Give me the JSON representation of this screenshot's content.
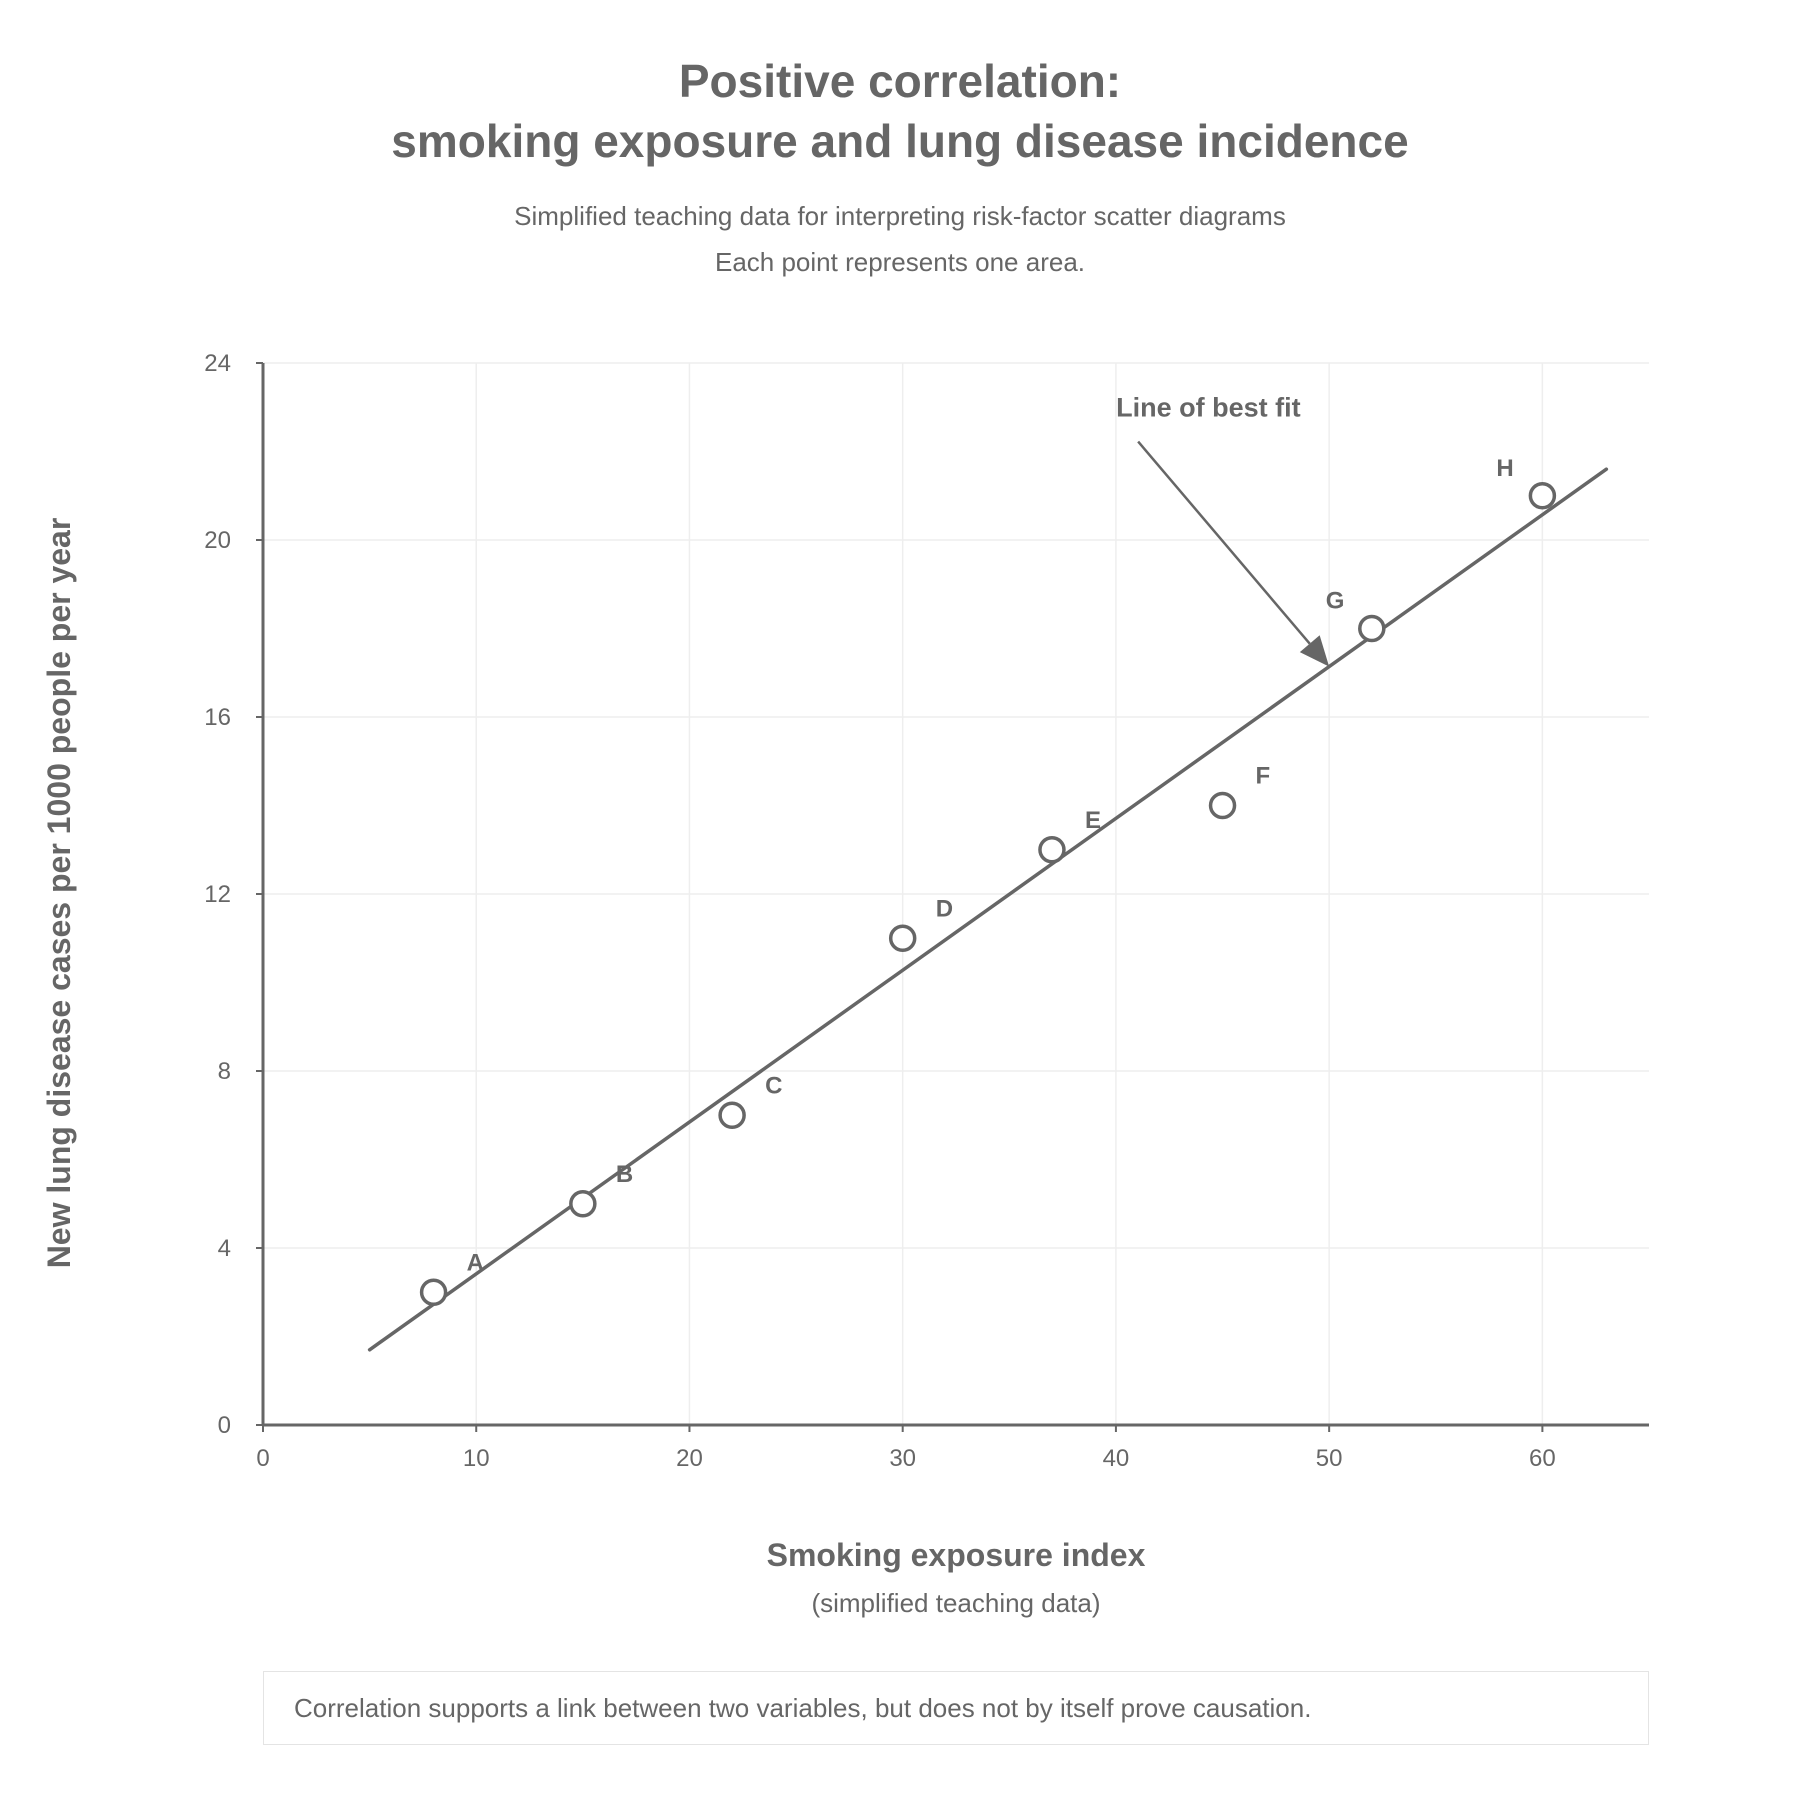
{
  "chart_data": {
    "type": "scatter",
    "title_lines": [
      "Positive correlation:",
      "smoking exposure and lung disease incidence"
    ],
    "subtitle_lines": [
      "Simplified teaching data for interpreting risk-factor scatter diagrams",
      "Each point represents one area."
    ],
    "xlabel": "Smoking exposure index",
    "xlabel_sub": "(simplified teaching data)",
    "ylabel": "New lung disease cases per 1000 people per year",
    "xlim": [
      0,
      65
    ],
    "ylim": [
      0,
      24
    ],
    "x_ticks": [
      0,
      10,
      20,
      30,
      40,
      50,
      60
    ],
    "y_ticks": [
      0,
      4,
      8,
      12,
      16,
      20,
      24
    ],
    "grid": true,
    "points": [
      {
        "label": "A",
        "x": 8,
        "y": 3
      },
      {
        "label": "B",
        "x": 15,
        "y": 5
      },
      {
        "label": "C",
        "x": 22,
        "y": 7
      },
      {
        "label": "D",
        "x": 30,
        "y": 11
      },
      {
        "label": "E",
        "x": 37,
        "y": 13
      },
      {
        "label": "F",
        "x": 45,
        "y": 14
      },
      {
        "label": "G",
        "x": 52,
        "y": 18
      },
      {
        "label": "H",
        "x": 60,
        "y": 21
      }
    ],
    "best_fit_line": {
      "x": [
        5,
        63
      ],
      "y": [
        1.7,
        21.6
      ]
    },
    "annotation": {
      "text": "Line of best fit",
      "points_to_x": 50,
      "arrow": "down-right"
    },
    "colors": {
      "ink": "#666666",
      "grid": "#eeeeee",
      "marker_fill": "#ffffff"
    }
  },
  "note": "Correlation supports a link between two variables, but does not by itself prove causation."
}
